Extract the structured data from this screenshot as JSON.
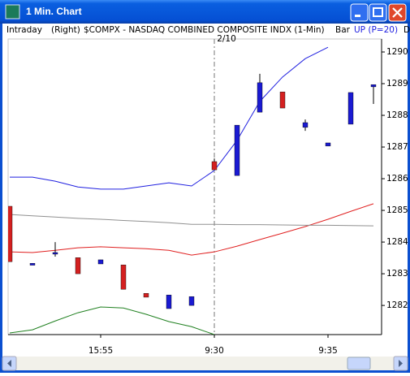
{
  "window": {
    "title": "1 Min. Chart"
  },
  "header": {
    "mode": "Intraday",
    "axis_side": "(Right)",
    "symbol": "$COMPX - NASDAQ COMBINED COMPOSITE INDX (1-Min)",
    "style": "Bar",
    "indicator": "UP (P=20)",
    "cut": "D"
  },
  "chart_data": {
    "type": "candlestick",
    "annotation": "2/10",
    "categories": [
      null,
      null,
      null,
      null,
      "15:55",
      null,
      null,
      null,
      null,
      "9:30",
      null,
      null,
      null,
      null,
      "9:35",
      null,
      null
    ],
    "open": [
      1285.13,
      1283.27,
      1283.67,
      1283.51,
      1283.31,
      1283.28,
      1282.38,
      1281.9,
      1282.0,
      1286.54,
      1286.1,
      1288.1,
      1288.74,
      1287.62,
      1287.03,
      1287.72,
      1288.9
    ],
    "high": [
      1285.13,
      1283.33,
      1284.0,
      1283.51,
      1283.44,
      1283.28,
      1282.38,
      1282.33,
      1282.28,
      1286.64,
      1287.69,
      1289.31,
      1288.74,
      1287.87,
      1287.13,
      1288.72,
      1288.97
    ],
    "low": [
      1283.38,
      1283.27,
      1283.54,
      1283.0,
      1283.31,
      1282.51,
      1282.26,
      1281.9,
      1282.0,
      1286.28,
      1286.1,
      1288.1,
      1288.23,
      1287.51,
      1287.03,
      1287.72,
      1288.36
    ],
    "close": [
      1283.38,
      1283.33,
      1283.67,
      1283.0,
      1283.44,
      1282.51,
      1282.26,
      1282.33,
      1282.28,
      1286.28,
      1287.69,
      1289.03,
      1288.23,
      1287.77,
      1287.13,
      1288.72,
      1288.97
    ],
    "up_color": "#1a1ad2",
    "down_color": "#d42020",
    "lines": [
      {
        "color": "#2020e0",
        "values": [
          1286.05,
          1286.05,
          1285.92,
          1285.74,
          1285.67,
          1285.67,
          1285.77,
          1285.87,
          1285.77,
          1286.26,
          1287.21,
          1288.44,
          1289.21,
          1289.79,
          1290.15,
          null,
          null
        ]
      },
      {
        "color": "#e02020",
        "values": [
          1283.69,
          1283.67,
          1283.74,
          1283.82,
          1283.85,
          1283.82,
          1283.79,
          1283.74,
          1283.59,
          1283.69,
          1283.87,
          1284.08,
          1284.28,
          1284.49,
          1284.72,
          1284.97,
          1285.21
        ]
      },
      {
        "color": "#909090",
        "values": [
          1284.87,
          1284.83,
          1284.79,
          1284.75,
          1284.72,
          1284.68,
          1284.65,
          1284.61,
          1284.56,
          1284.56,
          1284.55,
          1284.55,
          1284.54,
          1284.53,
          1284.53,
          1284.52,
          1284.51
        ]
      },
      {
        "color": "#208020",
        "values": [
          1281.13,
          1281.23,
          1281.51,
          1281.77,
          1281.95,
          1281.92,
          1281.72,
          1281.49,
          1281.33,
          1281.08,
          null,
          null,
          null,
          null,
          null,
          null,
          null
        ]
      }
    ],
    "ylim": [
      1281.08,
      1290.41
    ],
    "yticks": [
      1282,
      1283,
      1284,
      1285,
      1286,
      1287,
      1288,
      1289,
      1290
    ]
  }
}
